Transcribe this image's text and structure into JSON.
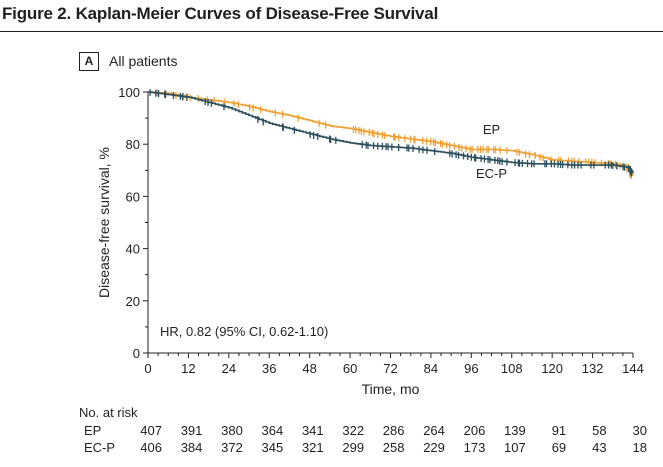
{
  "figure_title": "Figure 2. Kaplan-Meier Curves of Disease-Free Survival",
  "panel": {
    "letter": "A",
    "title": "All patients"
  },
  "annotation": "HR, 0.82 (95% CI, 0.62-1.10)",
  "risk_table": {
    "header": "No. at risk",
    "rows": [
      {
        "label": "EP",
        "values": [
          "407",
          "391",
          "380",
          "364",
          "341",
          "322",
          "286",
          "264",
          "206",
          "139",
          "91",
          "58",
          "30"
        ]
      },
      {
        "label": "EC-P",
        "values": [
          "406",
          "384",
          "372",
          "345",
          "321",
          "299",
          "258",
          "229",
          "173",
          "107",
          "69",
          "43",
          "18"
        ]
      }
    ]
  },
  "chart_data": {
    "type": "line",
    "xlabel": "Time, mo",
    "ylabel": "Disease-free survival, %",
    "xlim": [
      0,
      144
    ],
    "ylim": [
      0,
      100
    ],
    "x_ticks": [
      0,
      12,
      24,
      36,
      48,
      60,
      72,
      84,
      96,
      108,
      120,
      132,
      144
    ],
    "y_ticks": [
      0,
      20,
      40,
      60,
      80,
      100
    ],
    "grid": false,
    "legend": "none (direct labels)",
    "series": [
      {
        "name": "EP",
        "color": "#f0a030",
        "x": [
          0,
          6,
          12,
          18,
          24,
          30,
          36,
          42,
          48,
          54,
          60,
          66,
          72,
          78,
          84,
          90,
          96,
          102,
          108,
          114,
          120,
          126,
          132,
          138,
          143,
          144
        ],
        "y": [
          100,
          99.5,
          98,
          97,
          96,
          94.5,
          92.5,
          91,
          89,
          87,
          86,
          84.5,
          83,
          82,
          81,
          79.5,
          78,
          78,
          77.5,
          76,
          74,
          73.5,
          73,
          72.5,
          71,
          68
        ]
      },
      {
        "name": "EC-P",
        "color": "#2a4f5c",
        "x": [
          0,
          6,
          12,
          18,
          24,
          30,
          36,
          42,
          48,
          54,
          60,
          66,
          72,
          78,
          84,
          90,
          96,
          102,
          108,
          114,
          120,
          126,
          132,
          138,
          143,
          144
        ],
        "y": [
          100,
          99,
          98,
          96,
          94,
          91,
          88,
          86,
          84,
          82,
          80.5,
          79.5,
          79,
          78.5,
          77.5,
          76.5,
          75,
          74,
          73,
          72.5,
          72.5,
          72,
          72,
          72,
          71,
          69
        ]
      }
    ],
    "series_labels": [
      {
        "name": "EP",
        "x": 102,
        "y": 84
      },
      {
        "name": "EC-P",
        "x": 102,
        "y": 67
      }
    ]
  }
}
